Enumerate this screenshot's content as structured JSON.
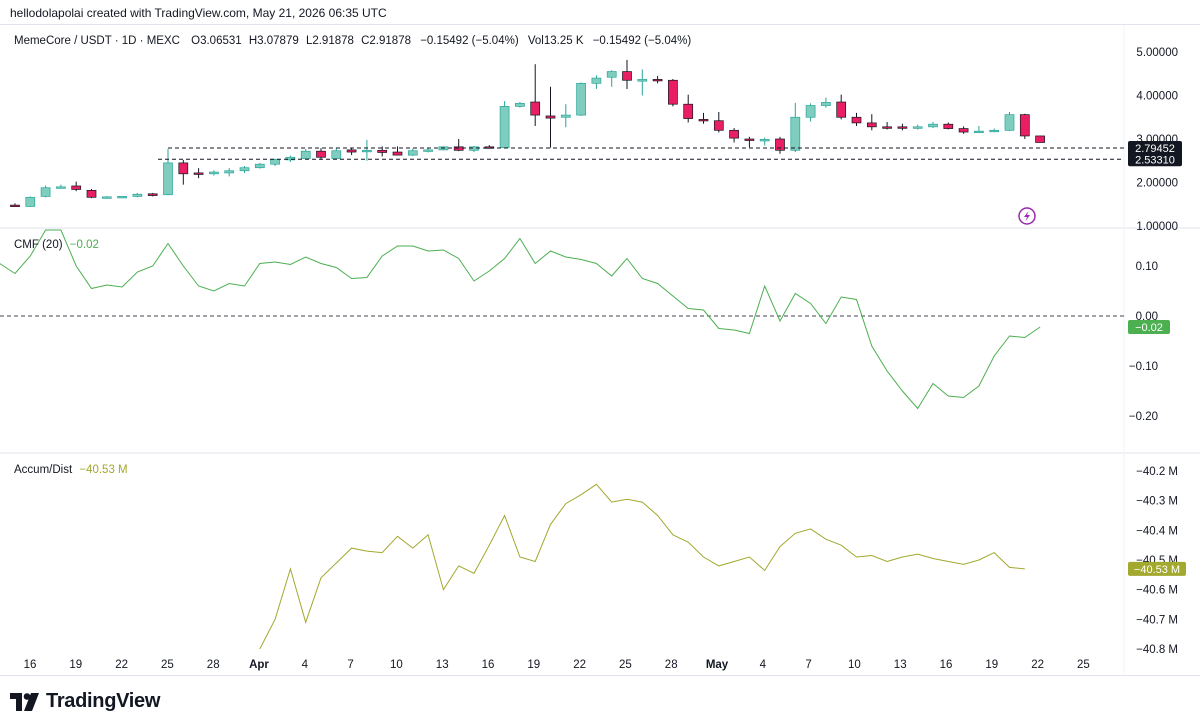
{
  "header": {
    "credit": "hellodolapolai created with TradingView.com, May 21, 2026 06:35 UTC"
  },
  "legend": {
    "symbol": "MemeCore / USDT · 1D · MEXC",
    "open": "O3.06531",
    "high": "H3.07879",
    "low": "L2.91878",
    "close": "C2.91878",
    "change": "−0.15492 (−5.04%)",
    "volume": "Vol13.25 K",
    "change2": "−0.15492 (−5.04%)"
  },
  "footer": {
    "brand": "TradingView"
  },
  "colors": {
    "up": "#26a69a",
    "up_fill": "#7ecdbf",
    "down": "#f23645",
    "down_fill": "#e91e63",
    "cmf_line": "#4caf50",
    "ad_line": "#a3a82e",
    "axis_text": "#131722",
    "grid_dash": "#434651",
    "flash_icon": "#9c27b0"
  },
  "chart_data": [
    {
      "type": "candlestick",
      "title": "MemeCore / USDT · 1D · MEXC",
      "ylim": [
        1.0,
        5.0
      ],
      "y_ticks": [
        "5.00000",
        "4.00000",
        "3.00000",
        "2.00000",
        "1.00000"
      ],
      "x_tick_labels": [
        "16",
        "19",
        "22",
        "25",
        "28",
        "Apr",
        "4",
        "7",
        "10",
        "13",
        "16",
        "19",
        "22",
        "25",
        "28",
        "May",
        "4",
        "7",
        "10",
        "13",
        "16",
        "19",
        "22",
        "25"
      ],
      "price_labels": [
        "2.79452",
        "2.53310"
      ],
      "horizontal_lines": [
        2.79452,
        2.5331
      ],
      "candles": [
        {
          "date": "Mar 15",
          "o": 1.48,
          "h": 1.52,
          "l": 1.44,
          "c": 1.45
        },
        {
          "date": "Mar 16",
          "o": 1.45,
          "h": 1.68,
          "l": 1.44,
          "c": 1.66
        },
        {
          "date": "Mar 17",
          "o": 1.68,
          "h": 1.93,
          "l": 1.66,
          "c": 1.88
        },
        {
          "date": "Mar 18",
          "o": 1.9,
          "h": 1.95,
          "l": 1.86,
          "c": 1.9
        },
        {
          "date": "Mar 19",
          "o": 1.92,
          "h": 2.02,
          "l": 1.8,
          "c": 1.84
        },
        {
          "date": "Mar 20",
          "o": 1.82,
          "h": 1.85,
          "l": 1.64,
          "c": 1.66
        },
        {
          "date": "Mar 21",
          "o": 1.66,
          "h": 1.69,
          "l": 1.64,
          "c": 1.67
        },
        {
          "date": "Mar 22",
          "o": 1.67,
          "h": 1.69,
          "l": 1.65,
          "c": 1.68
        },
        {
          "date": "Mar 23",
          "o": 1.68,
          "h": 1.76,
          "l": 1.66,
          "c": 1.73
        },
        {
          "date": "Mar 24",
          "o": 1.74,
          "h": 1.76,
          "l": 1.68,
          "c": 1.7
        },
        {
          "date": "Mar 25",
          "o": 1.72,
          "h": 2.77,
          "l": 1.7,
          "c": 2.45
        },
        {
          "date": "Mar 26",
          "o": 2.45,
          "h": 2.52,
          "l": 1.95,
          "c": 2.2
        },
        {
          "date": "Mar 27",
          "o": 2.22,
          "h": 2.33,
          "l": 2.1,
          "c": 2.2
        },
        {
          "date": "Mar 28",
          "o": 2.2,
          "h": 2.28,
          "l": 2.16,
          "c": 2.24
        },
        {
          "date": "Mar 29",
          "o": 2.22,
          "h": 2.33,
          "l": 2.14,
          "c": 2.27
        },
        {
          "date": "Mar 30",
          "o": 2.27,
          "h": 2.38,
          "l": 2.22,
          "c": 2.34
        },
        {
          "date": "Mar 31",
          "o": 2.34,
          "h": 2.45,
          "l": 2.32,
          "c": 2.42
        },
        {
          "date": "Apr 1",
          "o": 2.42,
          "h": 2.55,
          "l": 2.38,
          "c": 2.53
        },
        {
          "date": "Apr 2",
          "o": 2.52,
          "h": 2.62,
          "l": 2.47,
          "c": 2.58
        },
        {
          "date": "Apr 3",
          "o": 2.55,
          "h": 2.77,
          "l": 2.53,
          "c": 2.72
        },
        {
          "date": "Apr 4",
          "o": 2.72,
          "h": 2.79,
          "l": 2.52,
          "c": 2.58
        },
        {
          "date": "Apr 5",
          "o": 2.55,
          "h": 2.8,
          "l": 2.53,
          "c": 2.73
        },
        {
          "date": "Apr 6",
          "o": 2.75,
          "h": 2.8,
          "l": 2.63,
          "c": 2.7
        },
        {
          "date": "Apr 7",
          "o": 2.72,
          "h": 2.98,
          "l": 2.5,
          "c": 2.74
        },
        {
          "date": "Apr 8",
          "o": 2.74,
          "h": 2.83,
          "l": 2.6,
          "c": 2.69
        },
        {
          "date": "Apr 9",
          "o": 2.7,
          "h": 2.83,
          "l": 2.62,
          "c": 2.63
        },
        {
          "date": "Apr 10",
          "o": 2.63,
          "h": 2.78,
          "l": 2.61,
          "c": 2.73
        },
        {
          "date": "Apr 11",
          "o": 2.73,
          "h": 2.79,
          "l": 2.69,
          "c": 2.75
        },
        {
          "date": "Apr 12",
          "o": 2.75,
          "h": 2.83,
          "l": 2.74,
          "c": 2.82
        },
        {
          "date": "Apr 13",
          "o": 2.82,
          "h": 3.0,
          "l": 2.72,
          "c": 2.74
        },
        {
          "date": "Apr 14",
          "o": 2.74,
          "h": 2.84,
          "l": 2.7,
          "c": 2.82
        },
        {
          "date": "Apr 15",
          "o": 2.82,
          "h": 2.86,
          "l": 2.78,
          "c": 2.8
        },
        {
          "date": "Apr 16",
          "o": 2.8,
          "h": 3.87,
          "l": 2.79,
          "c": 3.75
        },
        {
          "date": "Apr 17",
          "o": 3.75,
          "h": 3.85,
          "l": 3.72,
          "c": 3.82
        },
        {
          "date": "Apr 18",
          "o": 3.85,
          "h": 4.72,
          "l": 3.3,
          "c": 3.55
        },
        {
          "date": "Apr 19",
          "o": 3.53,
          "h": 4.2,
          "l": 2.8,
          "c": 3.48
        },
        {
          "date": "Apr 20",
          "o": 3.5,
          "h": 3.8,
          "l": 3.27,
          "c": 3.55
        },
        {
          "date": "Apr 21",
          "o": 3.55,
          "h": 4.3,
          "l": 3.53,
          "c": 4.28
        },
        {
          "date": "Apr 22",
          "o": 4.28,
          "h": 4.46,
          "l": 4.15,
          "c": 4.4
        },
        {
          "date": "Apr 23",
          "o": 4.42,
          "h": 4.58,
          "l": 4.2,
          "c": 4.55
        },
        {
          "date": "Apr 24",
          "o": 4.55,
          "h": 4.82,
          "l": 4.15,
          "c": 4.35
        },
        {
          "date": "Apr 25",
          "o": 4.33,
          "h": 4.6,
          "l": 4.0,
          "c": 4.37
        },
        {
          "date": "Apr 26",
          "o": 4.37,
          "h": 4.45,
          "l": 4.28,
          "c": 4.35
        },
        {
          "date": "Apr 27",
          "o": 4.35,
          "h": 4.38,
          "l": 3.75,
          "c": 3.8
        },
        {
          "date": "Apr 28",
          "o": 3.8,
          "h": 4.02,
          "l": 3.38,
          "c": 3.47
        },
        {
          "date": "Apr 29",
          "o": 3.45,
          "h": 3.6,
          "l": 3.35,
          "c": 3.43
        },
        {
          "date": "Apr 30",
          "o": 3.42,
          "h": 3.62,
          "l": 3.15,
          "c": 3.2
        },
        {
          "date": "May 1",
          "o": 3.2,
          "h": 3.25,
          "l": 2.92,
          "c": 3.02
        },
        {
          "date": "May 2",
          "o": 3.0,
          "h": 3.05,
          "l": 2.81,
          "c": 2.99
        },
        {
          "date": "May 3",
          "o": 2.97,
          "h": 3.03,
          "l": 2.85,
          "c": 2.99
        },
        {
          "date": "May 4",
          "o": 3.0,
          "h": 3.05,
          "l": 2.66,
          "c": 2.74
        },
        {
          "date": "May 5",
          "o": 2.74,
          "h": 3.83,
          "l": 2.7,
          "c": 3.5
        },
        {
          "date": "May 6",
          "o": 3.5,
          "h": 3.82,
          "l": 3.4,
          "c": 3.77
        },
        {
          "date": "May 7",
          "o": 3.77,
          "h": 3.95,
          "l": 3.72,
          "c": 3.84
        },
        {
          "date": "May 8",
          "o": 3.85,
          "h": 4.02,
          "l": 3.45,
          "c": 3.5
        },
        {
          "date": "May 9",
          "o": 3.5,
          "h": 3.6,
          "l": 3.3,
          "c": 3.37
        },
        {
          "date": "May 10",
          "o": 3.37,
          "h": 3.57,
          "l": 3.2,
          "c": 3.28
        },
        {
          "date": "May 11",
          "o": 3.28,
          "h": 3.39,
          "l": 3.22,
          "c": 3.27
        },
        {
          "date": "May 12",
          "o": 3.28,
          "h": 3.35,
          "l": 3.2,
          "c": 3.26
        },
        {
          "date": "May 13",
          "o": 3.26,
          "h": 3.33,
          "l": 3.22,
          "c": 3.28
        },
        {
          "date": "May 14",
          "o": 3.28,
          "h": 3.39,
          "l": 3.25,
          "c": 3.34
        },
        {
          "date": "May 15",
          "o": 3.34,
          "h": 3.38,
          "l": 3.22,
          "c": 3.24
        },
        {
          "date": "May 16",
          "o": 3.24,
          "h": 3.29,
          "l": 3.12,
          "c": 3.16
        },
        {
          "date": "May 17",
          "o": 3.16,
          "h": 3.3,
          "l": 3.14,
          "c": 3.18
        },
        {
          "date": "May 18",
          "o": 3.18,
          "h": 3.24,
          "l": 3.16,
          "c": 3.2
        },
        {
          "date": "May 19",
          "o": 3.2,
          "h": 3.62,
          "l": 3.18,
          "c": 3.56
        },
        {
          "date": "May 20",
          "o": 3.56,
          "h": 3.58,
          "l": 3.0,
          "c": 3.07
        },
        {
          "date": "May 21",
          "o": 3.07,
          "h": 3.08,
          "l": 2.92,
          "c": 2.92
        }
      ]
    },
    {
      "type": "line",
      "title": "CMF (20)",
      "value_label": "−0.02",
      "ylim": [
        -0.25,
        0.18
      ],
      "y_ticks": [
        "0.10",
        "0.00",
        "−0.10",
        "−0.20"
      ],
      "zero_line": 0,
      "series": [
        {
          "values": [
            0.105,
            0.085,
            0.12,
            0.18,
            0.2,
            0.1,
            0.055,
            0.062,
            0.058,
            0.088,
            0.1,
            0.145,
            0.1,
            0.06,
            0.05,
            0.065,
            0.06,
            0.105,
            0.108,
            0.103,
            0.118,
            0.105,
            0.097,
            0.075,
            0.077,
            0.12,
            0.14,
            0.14,
            0.13,
            0.132,
            0.115,
            0.07,
            0.09,
            0.115,
            0.155,
            0.105,
            0.13,
            0.118,
            0.113,
            0.105,
            0.08,
            0.115,
            0.075,
            0.065,
            0.04,
            0.015,
            0.012,
            -0.025,
            -0.028,
            -0.035,
            0.06,
            -0.01,
            0.045,
            0.025,
            -0.015,
            0.038,
            0.033,
            -0.06,
            -0.11,
            -0.15,
            -0.185,
            -0.135,
            -0.16,
            -0.163,
            -0.14,
            -0.08,
            -0.04,
            -0.043,
            -0.022
          ]
        }
      ]
    },
    {
      "type": "line",
      "title": "Accum/Dist",
      "value_label": "−40.53 M",
      "ylim": [
        -40.82,
        -40.18
      ],
      "y_ticks": [
        "−40.2 M",
        "−40.3 M",
        "−40.4 M",
        "−40.5 M",
        "−40.6 M",
        "−40.7 M",
        "−40.8 M"
      ],
      "series": [
        {
          "values": [
            null,
            null,
            null,
            null,
            null,
            null,
            null,
            null,
            null,
            null,
            null,
            null,
            null,
            null,
            null,
            null,
            null,
            -40.8,
            -40.7,
            -40.53,
            -40.71,
            -40.56,
            -40.51,
            -40.46,
            -40.47,
            -40.475,
            -40.42,
            -40.46,
            -40.415,
            -40.6,
            -40.52,
            -40.545,
            -40.45,
            -40.35,
            -40.49,
            -40.505,
            -40.38,
            -40.31,
            -40.28,
            -40.245,
            -40.305,
            -40.295,
            -40.305,
            -40.35,
            -40.415,
            -40.44,
            -40.49,
            -40.52,
            -40.505,
            -40.49,
            -40.535,
            -40.455,
            -40.41,
            -40.395,
            -40.43,
            -40.45,
            -40.49,
            -40.485,
            -40.505,
            -40.49,
            -40.48,
            -40.495,
            -40.505,
            -40.515,
            -40.5,
            -40.475,
            -40.525,
            -40.53
          ]
        }
      ]
    }
  ]
}
